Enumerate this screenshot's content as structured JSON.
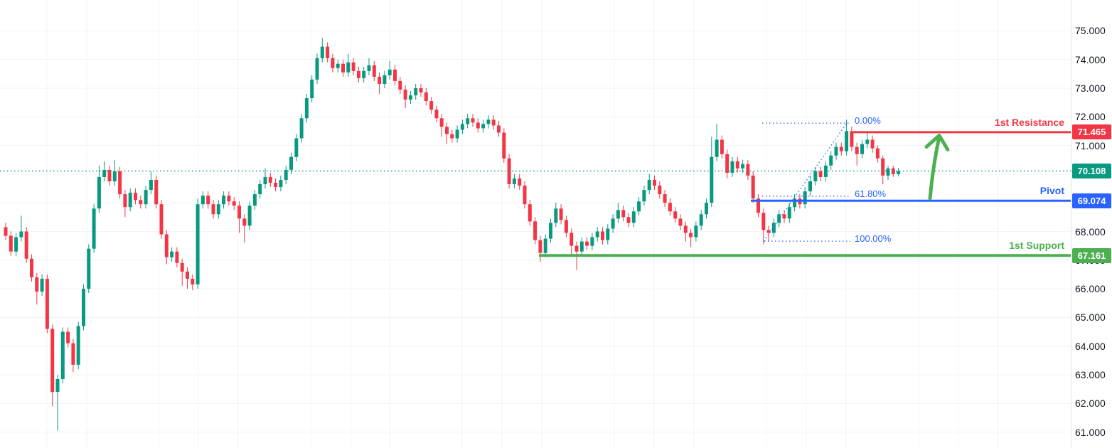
{
  "levels": {
    "resistance": {
      "label": "1st Resistance",
      "price_display": "71.465",
      "value": 71.465,
      "color": "#F23645"
    },
    "pivot": {
      "label": "Pivot",
      "price_display": "69.074",
      "value": 69.074,
      "color": "#2962FF"
    },
    "support": {
      "label": "1st Support",
      "price_display": "67.161",
      "value": 67.161,
      "color": "#4CAF50"
    },
    "last_price": {
      "price_display": "70.108",
      "value": 70.108,
      "color": "#089981"
    }
  },
  "fibonacci": {
    "color": "#2962FF",
    "levels": [
      {
        "label": "0.00%",
        "value": 71.78
      },
      {
        "label": "61.80%",
        "value": 69.23
      },
      {
        "label": "100.00%",
        "value": 67.66
      }
    ]
  },
  "annotations": {
    "up_arrow": {
      "color": "#4CAF50",
      "from_value": 69.15,
      "to_value": 71.35
    }
  },
  "price_axis": {
    "tick_labels": [
      "75.000",
      "74.000",
      "73.000",
      "72.000",
      "71.000",
      "70.000",
      "69.000",
      "68.000",
      "67.000",
      "66.000",
      "65.000",
      "64.000",
      "63.000",
      "62.000",
      "61.000"
    ],
    "tick_values": [
      75,
      74,
      73,
      72,
      71,
      70,
      69,
      68,
      67,
      66,
      65,
      64,
      63,
      62,
      61
    ]
  },
  "chart_data": {
    "type": "candlestick",
    "title": "",
    "xlabel": "",
    "ylabel": "",
    "up_color": "#089981",
    "down_color": "#F23645",
    "grid": true,
    "ylim": [
      60.8,
      75.45
    ],
    "y_ticks": [
      61,
      62,
      63,
      64,
      65,
      66,
      67,
      68,
      69,
      70,
      71,
      72,
      73,
      74,
      75
    ],
    "last_close": 70.108,
    "candles": [
      [
        68.15,
        68.3,
        67.7,
        67.85
      ],
      [
        67.85,
        68.0,
        67.15,
        67.3
      ],
      [
        67.3,
        67.95,
        67.15,
        67.8
      ],
      [
        67.8,
        68.55,
        67.65,
        68.0
      ],
      [
        68.0,
        68.15,
        66.9,
        67.05
      ],
      [
        67.05,
        67.2,
        66.25,
        66.4
      ],
      [
        66.4,
        66.55,
        65.45,
        65.9
      ],
      [
        65.9,
        66.5,
        65.75,
        66.35
      ],
      [
        66.35,
        66.5,
        64.45,
        64.6
      ],
      [
        64.6,
        64.75,
        61.9,
        62.4
      ],
      [
        62.4,
        63.0,
        61.05,
        62.85
      ],
      [
        62.85,
        64.65,
        62.7,
        64.5
      ],
      [
        64.5,
        64.65,
        63.95,
        64.1
      ],
      [
        64.1,
        64.25,
        63.1,
        63.35
      ],
      [
        63.35,
        64.85,
        63.2,
        64.7
      ],
      [
        64.7,
        66.15,
        64.55,
        66.0
      ],
      [
        66.0,
        67.55,
        65.85,
        67.4
      ],
      [
        67.4,
        68.95,
        67.25,
        68.8
      ],
      [
        68.8,
        70.3,
        68.65,
        69.9
      ],
      [
        69.9,
        70.45,
        69.75,
        70.15
      ],
      [
        70.15,
        70.3,
        69.6,
        69.75
      ],
      [
        69.75,
        70.5,
        69.6,
        70.1
      ],
      [
        70.1,
        70.25,
        69.15,
        69.3
      ],
      [
        69.3,
        69.45,
        68.5,
        68.85
      ],
      [
        68.85,
        69.5,
        68.7,
        69.35
      ],
      [
        69.35,
        69.5,
        68.95,
        69.1
      ],
      [
        69.1,
        69.25,
        68.8,
        68.95
      ],
      [
        68.95,
        69.6,
        68.8,
        69.45
      ],
      [
        69.45,
        70.1,
        69.3,
        69.8
      ],
      [
        69.8,
        69.95,
        68.8,
        68.95
      ],
      [
        68.95,
        69.1,
        67.75,
        67.9
      ],
      [
        67.9,
        68.05,
        66.85,
        67.1
      ],
      [
        67.1,
        67.45,
        66.95,
        67.3
      ],
      [
        67.3,
        67.45,
        66.75,
        66.9
      ],
      [
        66.9,
        67.05,
        66.1,
        66.6
      ],
      [
        66.6,
        66.75,
        66.0,
        66.35
      ],
      [
        66.35,
        66.5,
        65.95,
        66.15
      ],
      [
        66.15,
        69.15,
        66.0,
        68.95
      ],
      [
        68.95,
        69.4,
        68.8,
        69.25
      ],
      [
        69.25,
        69.4,
        68.8,
        68.95
      ],
      [
        68.95,
        69.1,
        68.45,
        68.6
      ],
      [
        68.6,
        69.1,
        68.45,
        68.95
      ],
      [
        68.95,
        69.4,
        68.8,
        69.25
      ],
      [
        69.25,
        69.4,
        68.9,
        69.05
      ],
      [
        69.05,
        69.2,
        68.75,
        68.9
      ],
      [
        68.9,
        69.05,
        67.95,
        68.45
      ],
      [
        68.45,
        68.6,
        67.6,
        68.2
      ],
      [
        68.2,
        69.05,
        68.05,
        68.9
      ],
      [
        68.9,
        69.45,
        68.75,
        69.3
      ],
      [
        69.3,
        69.8,
        69.15,
        69.65
      ],
      [
        69.65,
        70.2,
        69.5,
        69.9
      ],
      [
        69.9,
        70.05,
        69.55,
        69.7
      ],
      [
        69.7,
        69.85,
        69.4,
        69.55
      ],
      [
        69.55,
        69.95,
        69.4,
        69.8
      ],
      [
        69.8,
        70.3,
        69.65,
        70.15
      ],
      [
        70.15,
        70.75,
        70.0,
        70.6
      ],
      [
        70.6,
        71.4,
        70.45,
        71.25
      ],
      [
        71.25,
        72.1,
        71.1,
        71.95
      ],
      [
        71.95,
        72.8,
        71.8,
        72.65
      ],
      [
        72.65,
        73.45,
        72.5,
        73.3
      ],
      [
        73.3,
        74.2,
        73.15,
        74.05
      ],
      [
        74.05,
        74.75,
        73.9,
        74.45
      ],
      [
        74.45,
        74.6,
        73.9,
        74.05
      ],
      [
        74.05,
        74.2,
        73.55,
        73.7
      ],
      [
        73.7,
        74.0,
        73.55,
        73.85
      ],
      [
        73.85,
        74.0,
        73.4,
        73.55
      ],
      [
        73.55,
        74.2,
        73.4,
        73.9
      ],
      [
        73.9,
        74.05,
        73.45,
        73.6
      ],
      [
        73.6,
        73.75,
        73.2,
        73.35
      ],
      [
        73.35,
        73.75,
        73.2,
        73.6
      ],
      [
        73.6,
        74.05,
        73.45,
        73.8
      ],
      [
        73.8,
        73.95,
        73.25,
        73.4
      ],
      [
        73.4,
        73.55,
        72.8,
        73.15
      ],
      [
        73.15,
        73.6,
        73.0,
        73.45
      ],
      [
        73.45,
        73.95,
        73.3,
        73.65
      ],
      [
        73.65,
        73.8,
        73.1,
        73.25
      ],
      [
        73.25,
        73.4,
        72.8,
        72.95
      ],
      [
        72.95,
        73.1,
        72.3,
        72.6
      ],
      [
        72.6,
        72.9,
        72.45,
        72.75
      ],
      [
        72.75,
        73.15,
        72.6,
        73.0
      ],
      [
        73.0,
        73.15,
        72.7,
        72.85
      ],
      [
        72.85,
        73.0,
        72.4,
        72.55
      ],
      [
        72.55,
        72.7,
        72.1,
        72.25
      ],
      [
        72.25,
        72.4,
        71.8,
        71.95
      ],
      [
        71.95,
        72.1,
        71.3,
        71.65
      ],
      [
        71.65,
        71.8,
        71.05,
        71.4
      ],
      [
        71.4,
        71.55,
        71.1,
        71.25
      ],
      [
        71.25,
        71.7,
        71.1,
        71.55
      ],
      [
        71.55,
        71.9,
        71.4,
        71.75
      ],
      [
        71.75,
        72.1,
        71.6,
        71.95
      ],
      [
        71.95,
        72.1,
        71.65,
        71.8
      ],
      [
        71.8,
        71.95,
        71.45,
        71.6
      ],
      [
        71.6,
        71.9,
        71.45,
        71.75
      ],
      [
        71.75,
        72.05,
        71.6,
        71.9
      ],
      [
        71.9,
        72.05,
        71.55,
        71.7
      ],
      [
        71.7,
        71.85,
        71.3,
        71.45
      ],
      [
        71.45,
        71.6,
        70.4,
        70.55
      ],
      [
        70.55,
        70.7,
        69.5,
        69.65
      ],
      [
        69.65,
        70.0,
        69.5,
        69.85
      ],
      [
        69.85,
        70.0,
        69.45,
        69.6
      ],
      [
        69.6,
        69.75,
        68.8,
        68.95
      ],
      [
        68.95,
        69.1,
        68.2,
        68.35
      ],
      [
        68.35,
        68.5,
        67.55,
        67.7
      ],
      [
        67.7,
        67.85,
        66.95,
        67.25
      ],
      [
        67.25,
        67.9,
        67.1,
        67.75
      ],
      [
        67.75,
        68.45,
        67.6,
        68.3
      ],
      [
        68.3,
        69.0,
        68.15,
        68.8
      ],
      [
        68.8,
        68.95,
        68.25,
        68.4
      ],
      [
        68.4,
        68.55,
        67.8,
        67.95
      ],
      [
        67.95,
        68.1,
        67.2,
        67.5
      ],
      [
        67.5,
        67.65,
        66.65,
        67.3
      ],
      [
        67.3,
        67.8,
        67.15,
        67.65
      ],
      [
        67.65,
        67.8,
        67.35,
        67.5
      ],
      [
        67.5,
        67.95,
        67.35,
        67.8
      ],
      [
        67.8,
        68.15,
        67.65,
        68.0
      ],
      [
        68.0,
        68.15,
        67.55,
        67.7
      ],
      [
        67.7,
        68.25,
        67.55,
        68.1
      ],
      [
        68.1,
        68.6,
        67.95,
        68.45
      ],
      [
        68.45,
        69.0,
        68.3,
        68.75
      ],
      [
        68.75,
        68.9,
        68.35,
        68.5
      ],
      [
        68.5,
        68.65,
        68.15,
        68.3
      ],
      [
        68.3,
        68.85,
        68.15,
        68.7
      ],
      [
        68.7,
        69.2,
        68.55,
        69.05
      ],
      [
        69.05,
        69.6,
        68.9,
        69.45
      ],
      [
        69.45,
        70.0,
        69.3,
        69.8
      ],
      [
        69.8,
        69.95,
        69.45,
        69.6
      ],
      [
        69.6,
        69.75,
        69.15,
        69.3
      ],
      [
        69.3,
        69.45,
        68.85,
        69.0
      ],
      [
        69.0,
        69.15,
        68.55,
        68.7
      ],
      [
        68.7,
        68.85,
        68.3,
        68.45
      ],
      [
        68.45,
        68.6,
        68.05,
        68.2
      ],
      [
        68.2,
        68.35,
        67.65,
        67.95
      ],
      [
        67.95,
        68.1,
        67.45,
        67.8
      ],
      [
        67.8,
        68.35,
        67.65,
        68.2
      ],
      [
        68.2,
        68.75,
        68.05,
        68.6
      ],
      [
        68.6,
        69.15,
        68.45,
        69.0
      ],
      [
        69.0,
        71.3,
        68.85,
        70.6
      ],
      [
        70.6,
        71.75,
        70.45,
        71.2
      ],
      [
        71.2,
        71.35,
        70.55,
        70.7
      ],
      [
        70.7,
        70.85,
        69.85,
        70.05
      ],
      [
        70.05,
        70.6,
        69.9,
        70.45
      ],
      [
        70.45,
        70.6,
        70.05,
        70.2
      ],
      [
        70.2,
        70.5,
        70.05,
        70.35
      ],
      [
        70.35,
        70.5,
        69.8,
        69.95
      ],
      [
        69.95,
        70.1,
        69.0,
        69.15
      ],
      [
        69.15,
        69.3,
        68.5,
        68.65
      ],
      [
        68.65,
        68.8,
        67.55,
        68.05
      ],
      [
        68.05,
        68.2,
        67.65,
        67.95
      ],
      [
        67.95,
        68.45,
        67.8,
        68.3
      ],
      [
        68.3,
        68.75,
        68.15,
        68.6
      ],
      [
        68.6,
        68.75,
        68.3,
        68.45
      ],
      [
        68.45,
        69.0,
        68.3,
        68.85
      ],
      [
        68.85,
        69.3,
        68.7,
        69.15
      ],
      [
        69.15,
        69.3,
        68.8,
        68.95
      ],
      [
        68.95,
        69.55,
        68.8,
        69.4
      ],
      [
        69.4,
        69.95,
        69.25,
        69.75
      ],
      [
        69.75,
        70.25,
        69.6,
        70.1
      ],
      [
        70.1,
        70.25,
        69.75,
        69.9
      ],
      [
        69.9,
        70.45,
        69.75,
        70.3
      ],
      [
        70.3,
        70.8,
        70.15,
        70.65
      ],
      [
        70.65,
        71.1,
        70.5,
        70.95
      ],
      [
        70.95,
        71.1,
        70.65,
        70.8
      ],
      [
        70.8,
        71.9,
        70.65,
        71.5
      ],
      [
        71.5,
        71.65,
        70.8,
        70.95
      ],
      [
        70.95,
        71.1,
        70.3,
        70.7
      ],
      [
        70.7,
        71.2,
        70.55,
        71.05
      ],
      [
        71.05,
        71.45,
        70.9,
        71.2
      ],
      [
        71.2,
        71.35,
        70.75,
        70.9
      ],
      [
        70.9,
        71.0,
        70.4,
        70.55
      ],
      [
        70.55,
        70.65,
        69.65,
        69.95
      ],
      [
        69.95,
        70.3,
        69.8,
        70.2
      ],
      [
        70.2,
        70.3,
        69.9,
        70.0
      ],
      [
        70.0,
        70.22,
        69.92,
        70.11
      ]
    ]
  }
}
